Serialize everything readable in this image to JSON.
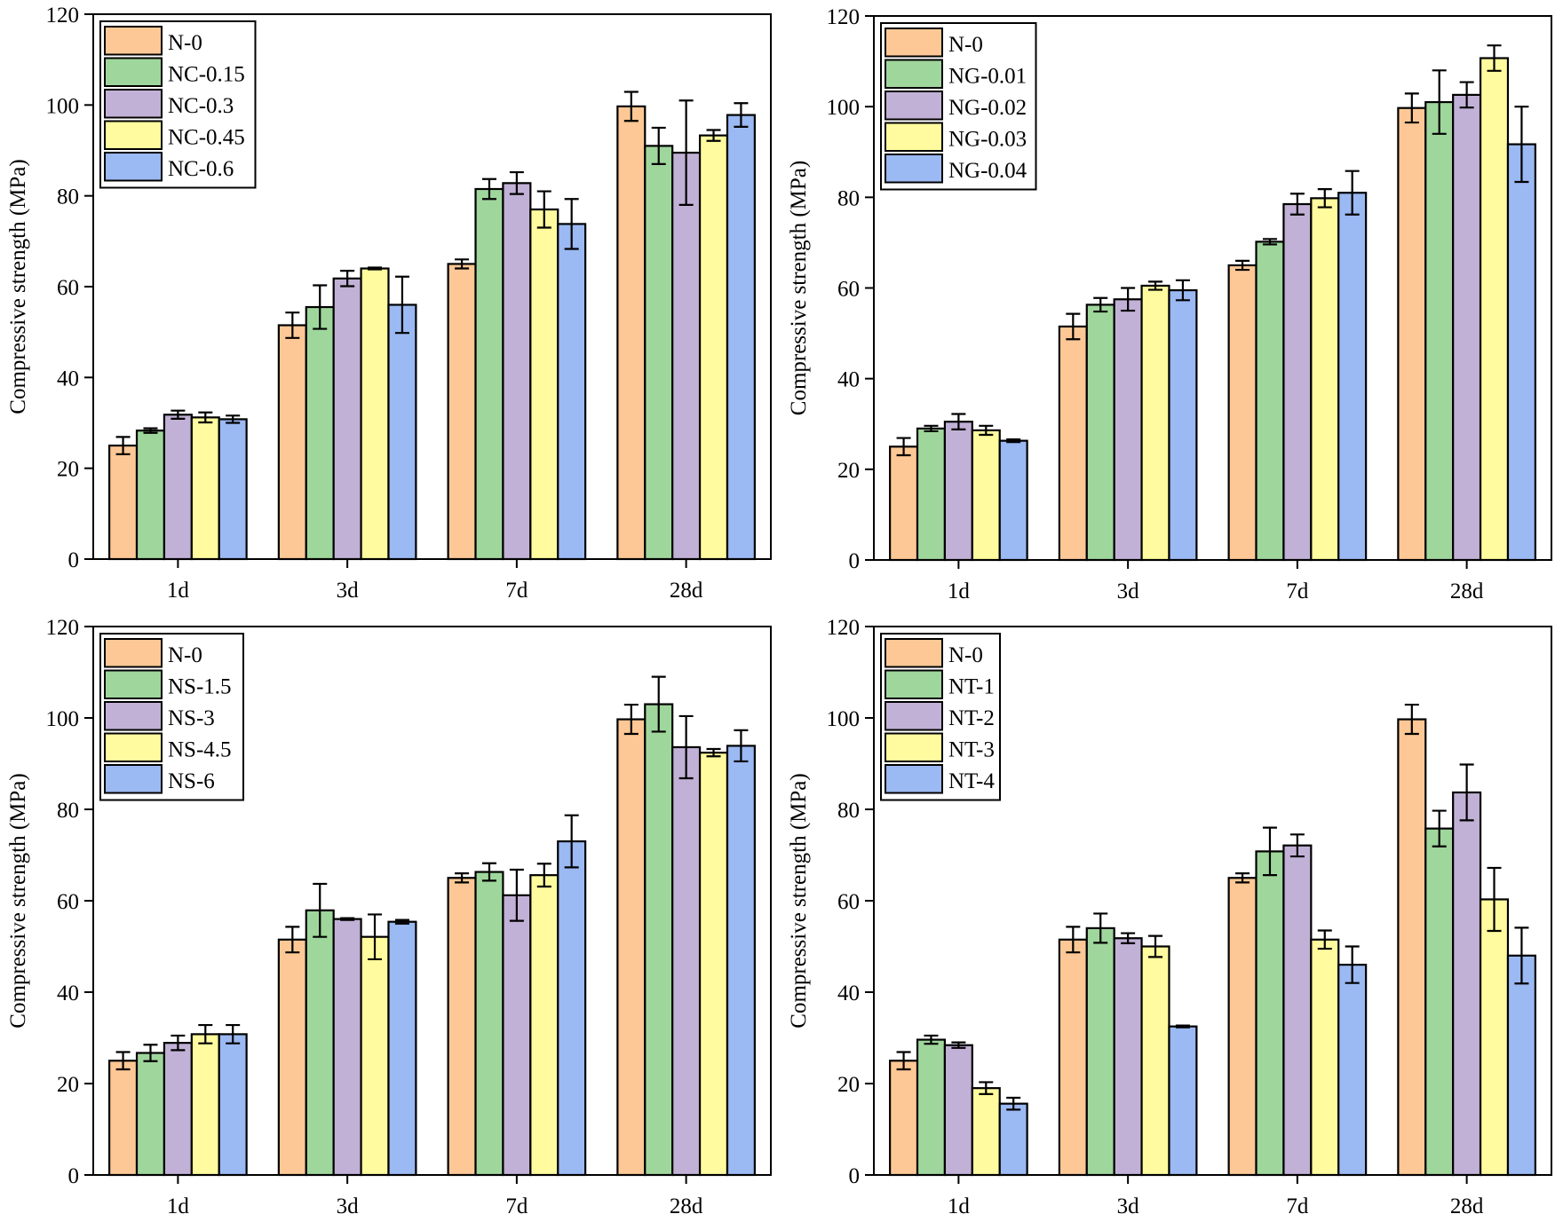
{
  "chart_data": [
    {
      "type": "bar",
      "panel": "top-left",
      "title": "",
      "xlabel": "",
      "ylabel": "Compressive strength (MPa)",
      "ylim": [
        0,
        120
      ],
      "yticks": [
        0,
        20,
        40,
        60,
        80,
        100,
        120
      ],
      "categories": [
        "1d",
        "3d",
        "7d",
        "28d"
      ],
      "legend_position": "top-left",
      "series": [
        {
          "name": "N-0",
          "color": "#FDC895",
          "values": [
            25.0,
            51.5,
            65.0,
            99.7
          ],
          "errors": [
            1.9,
            2.8,
            1.0,
            3.2
          ]
        },
        {
          "name": "NC-0.15",
          "color": "#9FD69C",
          "values": [
            28.3,
            55.5,
            81.5,
            91.0
          ],
          "errors": [
            0.5,
            4.8,
            2.2,
            4.0
          ]
        },
        {
          "name": "NC-0.3",
          "color": "#C2B1D6",
          "values": [
            31.8,
            61.8,
            82.8,
            89.5
          ],
          "errors": [
            0.9,
            1.7,
            2.4,
            11.5
          ]
        },
        {
          "name": "NC-0.45",
          "color": "#FFFB9E",
          "values": [
            31.2,
            64.0,
            77.0,
            93.3
          ],
          "errors": [
            1.1,
            0.2,
            4.0,
            1.2
          ]
        },
        {
          "name": "NC-0.6",
          "color": "#9BB9F2",
          "values": [
            30.8,
            56.0,
            73.8,
            97.8
          ],
          "errors": [
            0.8,
            6.2,
            5.5,
            2.6
          ]
        }
      ]
    },
    {
      "type": "bar",
      "panel": "top-right",
      "title": "",
      "xlabel": "",
      "ylabel": "Compressive strength (MPa)",
      "ylim": [
        0,
        120
      ],
      "yticks": [
        0,
        20,
        40,
        60,
        80,
        100,
        120
      ],
      "categories": [
        "1d",
        "3d",
        "7d",
        "28d"
      ],
      "legend_position": "top-left",
      "series": [
        {
          "name": "N-0",
          "color": "#FDC895",
          "values": [
            25.0,
            51.5,
            65.0,
            99.7
          ],
          "errors": [
            1.9,
            2.8,
            1.0,
            3.2
          ]
        },
        {
          "name": "NG-0.01",
          "color": "#9FD69C",
          "values": [
            29.0,
            56.3,
            70.2,
            101.0
          ],
          "errors": [
            0.6,
            1.5,
            0.6,
            7.0
          ]
        },
        {
          "name": "NG-0.02",
          "color": "#C2B1D6",
          "values": [
            30.5,
            57.5,
            78.5,
            102.6
          ],
          "errors": [
            1.7,
            2.5,
            2.3,
            2.8
          ]
        },
        {
          "name": "NG-0.03",
          "color": "#FFFB9E",
          "values": [
            28.6,
            60.5,
            79.8,
            110.7
          ],
          "errors": [
            1.0,
            0.9,
            2.0,
            2.8
          ]
        },
        {
          "name": "NG-0.04",
          "color": "#9BB9F2",
          "values": [
            26.3,
            59.5,
            81.0,
            91.7
          ],
          "errors": [
            0.3,
            2.2,
            4.8,
            8.3
          ]
        }
      ]
    },
    {
      "type": "bar",
      "panel": "bottom-left",
      "title": "",
      "xlabel": "",
      "ylabel": "Compressive strength (MPa)",
      "ylim": [
        0,
        120
      ],
      "yticks": [
        0,
        20,
        40,
        60,
        80,
        100,
        120
      ],
      "categories": [
        "1d",
        "3d",
        "7d",
        "28d"
      ],
      "legend_position": "top-left",
      "series": [
        {
          "name": "N-0",
          "color": "#FDC895",
          "values": [
            25.0,
            51.5,
            65.0,
            99.7
          ],
          "errors": [
            1.9,
            2.8,
            1.0,
            3.2
          ]
        },
        {
          "name": "NS-1.5",
          "color": "#9FD69C",
          "values": [
            26.7,
            57.9,
            66.3,
            103.0
          ],
          "errors": [
            1.8,
            5.8,
            1.9,
            6.0
          ]
        },
        {
          "name": "NS-3",
          "color": "#C2B1D6",
          "values": [
            28.9,
            56.0,
            61.2,
            93.6
          ],
          "errors": [
            1.6,
            0.2,
            5.6,
            6.8
          ]
        },
        {
          "name": "NS-4.5",
          "color": "#FFFB9E",
          "values": [
            30.8,
            52.1,
            65.6,
            92.4
          ],
          "errors": [
            2.0,
            4.9,
            2.5,
            0.8
          ]
        },
        {
          "name": "NS-6",
          "color": "#9BB9F2",
          "values": [
            30.8,
            55.4,
            73.0,
            93.9
          ],
          "errors": [
            2.0,
            0.4,
            5.7,
            3.4
          ]
        }
      ]
    },
    {
      "type": "bar",
      "panel": "bottom-right",
      "title": "",
      "xlabel": "",
      "ylabel": "Compressive strength (MPa)",
      "ylim": [
        0,
        120
      ],
      "yticks": [
        0,
        20,
        40,
        60,
        80,
        100,
        120
      ],
      "categories": [
        "1d",
        "3d",
        "7d",
        "28d"
      ],
      "legend_position": "top-left",
      "series": [
        {
          "name": "N-0",
          "color": "#FDC895",
          "values": [
            25.0,
            51.5,
            65.0,
            99.7
          ],
          "errors": [
            1.9,
            2.8,
            1.0,
            3.2
          ]
        },
        {
          "name": "NT-1",
          "color": "#9FD69C",
          "values": [
            29.6,
            54.0,
            70.8,
            75.8
          ],
          "errors": [
            0.9,
            3.2,
            5.2,
            3.9
          ]
        },
        {
          "name": "NT-2",
          "color": "#C2B1D6",
          "values": [
            28.4,
            51.8,
            72.1,
            83.7
          ],
          "errors": [
            0.6,
            1.1,
            2.4,
            6.1
          ]
        },
        {
          "name": "NT-3",
          "color": "#FFFB9E",
          "values": [
            19.0,
            50.0,
            51.5,
            60.3
          ],
          "errors": [
            1.3,
            2.3,
            2.0,
            6.9
          ]
        },
        {
          "name": "NT-4",
          "color": "#9BB9F2",
          "values": [
            15.6,
            32.5,
            46.0,
            48.0
          ],
          "errors": [
            1.3,
            0.2,
            4.0,
            6.1
          ]
        }
      ]
    }
  ]
}
